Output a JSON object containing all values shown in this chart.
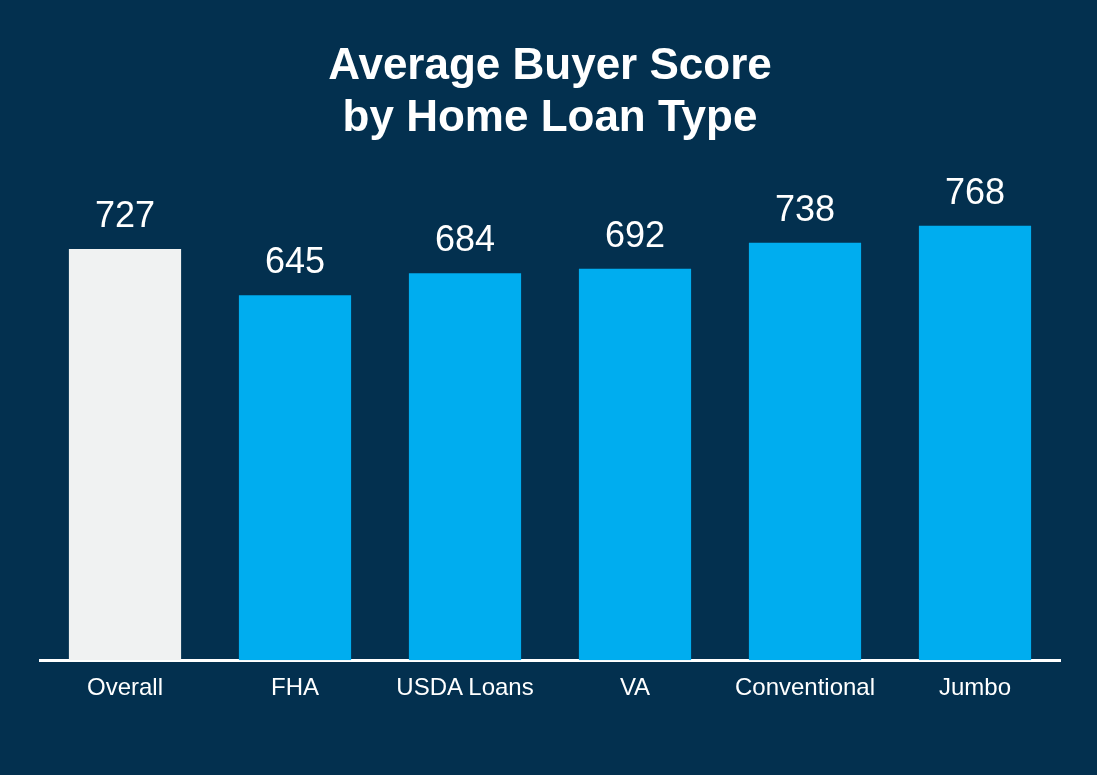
{
  "chart_data": {
    "type": "bar",
    "title": "Average Buyer Score\nby Home Loan Type",
    "categories": [
      "Overall",
      "FHA",
      "USDA Loans",
      "VA",
      "Conventional",
      "Jumbo"
    ],
    "values": [
      727,
      645,
      684,
      692,
      738,
      768
    ],
    "colors": [
      "#f0f2f2",
      "#00adef",
      "#00adef",
      "#00adef",
      "#00adef",
      "#00adef"
    ],
    "tick_labels": "x",
    "grid": false,
    "legend": false,
    "data_labels": true
  }
}
